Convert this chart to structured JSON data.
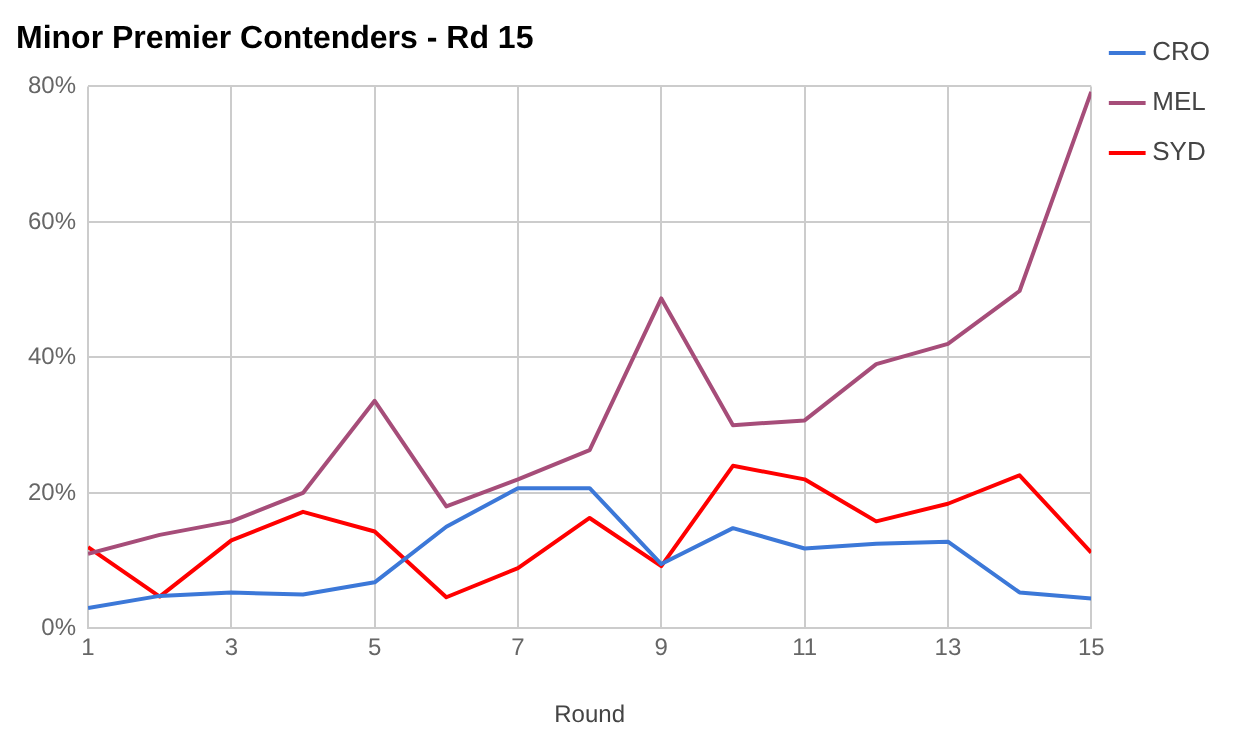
{
  "chart_data": {
    "type": "line",
    "title": "Minor Premier Contenders - Rd 15",
    "xlabel": "Round",
    "x": [
      1,
      2,
      3,
      4,
      5,
      6,
      7,
      8,
      9,
      10,
      11,
      12,
      13,
      14,
      15
    ],
    "series": [
      {
        "name": "CRO",
        "color": "#3c78d8",
        "values": [
          3,
          4.8,
          5.3,
          5,
          6.8,
          15,
          20.7,
          20.7,
          9.5,
          14.8,
          11.8,
          12.5,
          12.8,
          5.3,
          4.4
        ]
      },
      {
        "name": "MEL",
        "color": "#a64d79",
        "values": [
          11,
          13.8,
          15.8,
          20,
          33.6,
          18,
          22,
          26.3,
          48.7,
          30,
          30.7,
          39,
          42,
          49.8,
          79.2
        ]
      },
      {
        "name": "SYD",
        "color": "#ff0000",
        "values": [
          12,
          4.7,
          13,
          17.2,
          14.3,
          4.6,
          8.9,
          16.3,
          9.2,
          24,
          22,
          15.8,
          18.4,
          22.6,
          11.2
        ]
      }
    ],
    "xlim": [
      1,
      15
    ],
    "xticks": [
      1,
      3,
      5,
      7,
      9,
      11,
      13,
      15
    ],
    "ylim": [
      0,
      80
    ],
    "yticks": [
      {
        "value": 0,
        "label": "0%"
      },
      {
        "value": 20,
        "label": "20%"
      },
      {
        "value": 40,
        "label": "40%"
      },
      {
        "value": 60,
        "label": "60%"
      },
      {
        "value": 80,
        "label": "80%"
      }
    ],
    "grid": true,
    "legend": "right",
    "marker": "none",
    "line_style": "solid"
  }
}
